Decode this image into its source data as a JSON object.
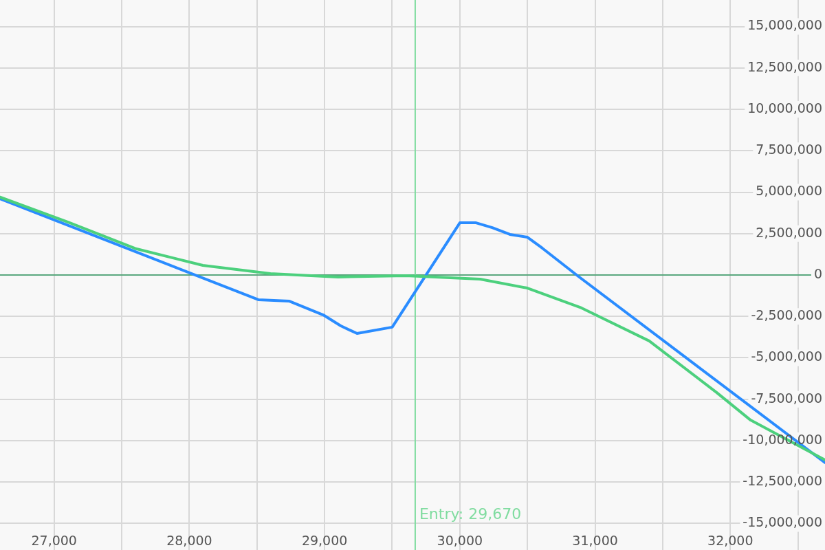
{
  "chart_data": {
    "type": "line",
    "xlim": [
      26600,
      32700
    ],
    "ylim": [
      -16600000,
      16600000
    ],
    "xticks": [
      {
        "value": 27000,
        "label": "27,000"
      },
      {
        "value": 27500,
        "label": null
      },
      {
        "value": 28000,
        "label": "28,000"
      },
      {
        "value": 28500,
        "label": null
      },
      {
        "value": 29000,
        "label": "29,000"
      },
      {
        "value": 29500,
        "label": null
      },
      {
        "value": 30000,
        "label": "30,000"
      },
      {
        "value": 30500,
        "label": null
      },
      {
        "value": 31000,
        "label": "31,000"
      },
      {
        "value": 31500,
        "label": null
      },
      {
        "value": 32000,
        "label": "32,000"
      },
      {
        "value": 32500,
        "label": null
      }
    ],
    "yticks": [
      {
        "value": -15000000,
        "label": "-15,000,000"
      },
      {
        "value": -12500000,
        "label": "-12,500,000"
      },
      {
        "value": -10000000,
        "label": "-10,000,000"
      },
      {
        "value": -7500000,
        "label": "-7,500,000"
      },
      {
        "value": -5000000,
        "label": "-5,000,000"
      },
      {
        "value": -2500000,
        "label": "-2,500,000"
      },
      0,
      {
        "value": 2500000,
        "label": "2,500,000"
      },
      {
        "value": 5000000,
        "label": "5,000,000"
      },
      {
        "value": 7500000,
        "label": "7,500,000"
      },
      {
        "value": 10000000,
        "label": "10,000,000"
      },
      {
        "value": 12500000,
        "label": "12,500,000"
      },
      {
        "value": 15000000,
        "label": "15,000,000"
      }
    ],
    "grid": true,
    "legend": false,
    "marker": "none",
    "line_style": "solid",
    "series": [
      {
        "color": "#4cd07d",
        "x": [
          26600,
          27100,
          27600,
          28100,
          28600,
          29100,
          29600,
          30150,
          30500,
          30900,
          31400,
          31900,
          32150,
          32700
        ],
        "values": [
          4700000,
          3200000,
          1600000,
          580000,
          80000,
          -120000,
          -40000,
          -250000,
          -790000,
          -1990000,
          -3980000,
          -7100000,
          -8760000,
          -11160000
        ]
      },
      {
        "color": "#2a8cff",
        "x": [
          26600,
          28510,
          28740,
          28990,
          29120,
          29240,
          29500,
          30000,
          30120,
          30240,
          30370,
          30500,
          30610,
          30870,
          32700
        ],
        "values": [
          4600000,
          -1490000,
          -1580000,
          -2410000,
          -3070000,
          -3530000,
          -3150000,
          3150000,
          3150000,
          2860000,
          2450000,
          2280000,
          1620000,
          -40000,
          -11330000
        ]
      }
    ],
    "ref_lines": [
      {
        "axis": "y",
        "value": 0,
        "color": "#5aa87e"
      },
      {
        "axis": "x",
        "value": 29670,
        "label": "Entry: 29,670",
        "color": "#80dca0"
      }
    ]
  }
}
